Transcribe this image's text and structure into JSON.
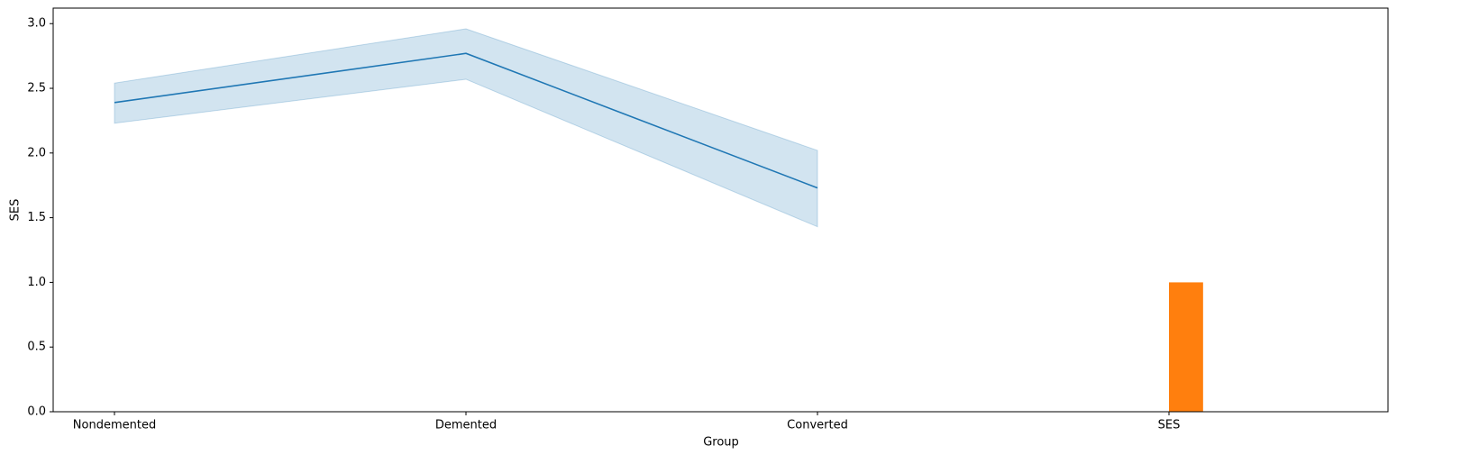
{
  "chart_data": {
    "type": "line",
    "x_label": "Group",
    "y_label": "SES",
    "categories": [
      "Nondemented",
      "Demented",
      "Converted",
      "SES"
    ],
    "ylim": [
      0,
      3.12
    ],
    "yticks": [
      {
        "value": 0,
        "label": "0.0"
      },
      0.5,
      {
        "value": 1,
        "label": "1.0"
      },
      1.5,
      {
        "value": 2,
        "label": "2.0"
      },
      2.5,
      {
        "value": 3,
        "label": "3.0"
      }
    ],
    "series": [
      {
        "type": "line",
        "color": "#1f77b4",
        "values": [
          2.39,
          2.77,
          1.73,
          null
        ],
        "ci_lower": [
          2.23,
          2.57,
          1.43,
          null
        ],
        "ci_upper": [
          2.54,
          2.96,
          2.02,
          null
        ]
      },
      {
        "type": "bar",
        "color": "#ff7f0e",
        "values": [
          null,
          null,
          null,
          1.0
        ]
      }
    ]
  }
}
